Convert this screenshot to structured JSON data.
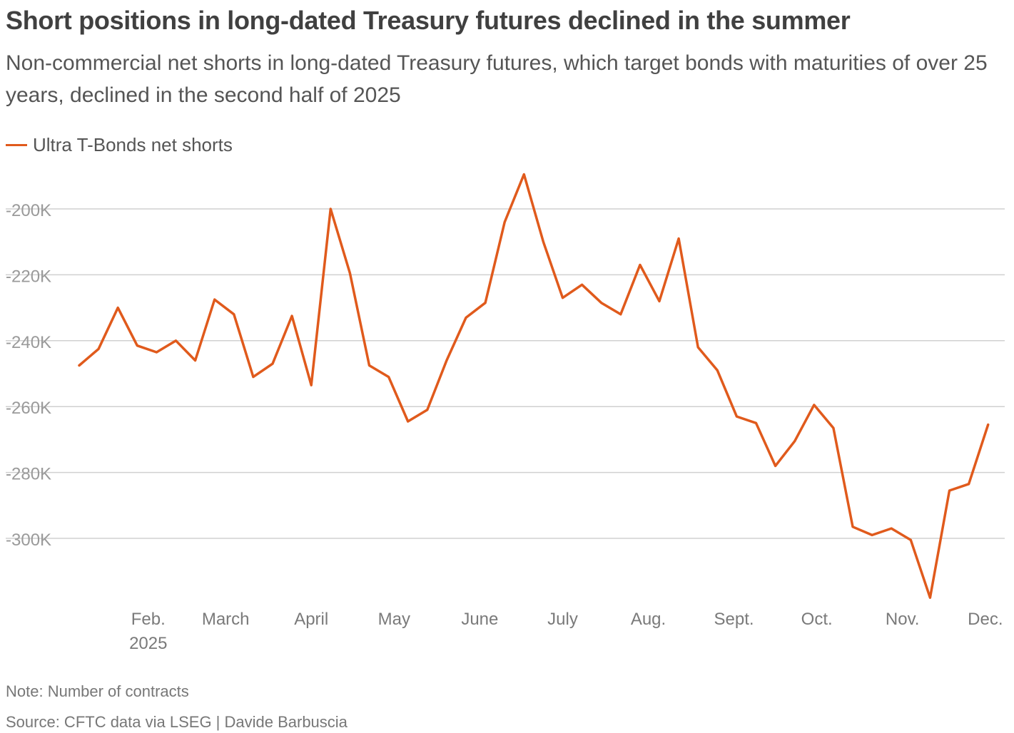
{
  "title": "Short positions in long-dated Treasury futures declined in the summer",
  "subtitle": "Non-commercial net shorts in long-dated Treasury futures, which target bonds with maturities of over 25 years, declined in the second half of 2025",
  "note": "Note: Number of contracts",
  "source": "Source: CFTC data via LSEG | Davide Barbuscia",
  "colors": {
    "series": "#e05a1c",
    "grid": "#d0d0d0"
  },
  "chart_data": {
    "type": "line",
    "title": "Short positions in long-dated Treasury futures declined in the summer",
    "xlabel": "",
    "ylabel": "",
    "ylim": [
      -320000,
      -190000
    ],
    "yticks": [
      -200000,
      -220000,
      -240000,
      -260000,
      -280000,
      -300000
    ],
    "ytick_labels": [
      "-200K",
      "-220K",
      "-240K",
      "-260K",
      "-280K",
      "-300K"
    ],
    "xticks": [
      {
        "label": "Feb.",
        "sublabel": "2025",
        "date": "2025-02-01"
      },
      {
        "label": "March",
        "date": "2025-03-01"
      },
      {
        "label": "April",
        "date": "2025-04-01"
      },
      {
        "label": "May",
        "date": "2025-05-01"
      },
      {
        "label": "June",
        "date": "2025-06-01"
      },
      {
        "label": "July",
        "date": "2025-07-01"
      },
      {
        "label": "Aug.",
        "date": "2025-08-01"
      },
      {
        "label": "Sept.",
        "date": "2025-09-01"
      },
      {
        "label": "Oct.",
        "date": "2025-10-01"
      },
      {
        "label": "Nov.",
        "date": "2025-11-01"
      },
      {
        "label": "Dec.",
        "date": "2025-12-01"
      }
    ],
    "grid": true,
    "legend": "top-left",
    "series": [
      {
        "name": "Ultra T-Bonds net shorts",
        "x": [
          "2025-01-07",
          "2025-01-14",
          "2025-01-21",
          "2025-01-28",
          "2025-02-04",
          "2025-02-11",
          "2025-02-18",
          "2025-02-25",
          "2025-03-04",
          "2025-03-11",
          "2025-03-18",
          "2025-03-25",
          "2025-04-01",
          "2025-04-08",
          "2025-04-15",
          "2025-04-22",
          "2025-04-29",
          "2025-05-06",
          "2025-05-13",
          "2025-05-20",
          "2025-05-27",
          "2025-06-03",
          "2025-06-10",
          "2025-06-17",
          "2025-06-24",
          "2025-07-01",
          "2025-07-08",
          "2025-07-15",
          "2025-07-22",
          "2025-07-29",
          "2025-08-05",
          "2025-08-12",
          "2025-08-19",
          "2025-08-26",
          "2025-09-02",
          "2025-09-09",
          "2025-09-16",
          "2025-09-23",
          "2025-09-30",
          "2025-10-07",
          "2025-10-14",
          "2025-10-21",
          "2025-10-28",
          "2025-11-04",
          "2025-11-11",
          "2025-11-18",
          "2025-11-25",
          "2025-12-02"
        ],
        "y": [
          -247500,
          -242500,
          -230000,
          -241500,
          -243500,
          -240000,
          -246000,
          -227500,
          -232000,
          -251000,
          -247000,
          -232500,
          -253500,
          -200000,
          -219500,
          -247500,
          -251000,
          -264500,
          -261000,
          -246000,
          -233000,
          -228500,
          -204000,
          -189500,
          -210000,
          -227000,
          -223000,
          -228500,
          -232000,
          -217000,
          -228000,
          -209000,
          -242000,
          -249000,
          -263000,
          -265000,
          -278000,
          -270500,
          -259500,
          -266500,
          -296500,
          -299000,
          -297000,
          -300500,
          -318000,
          -285500,
          -283500,
          -265500
        ]
      }
    ]
  }
}
